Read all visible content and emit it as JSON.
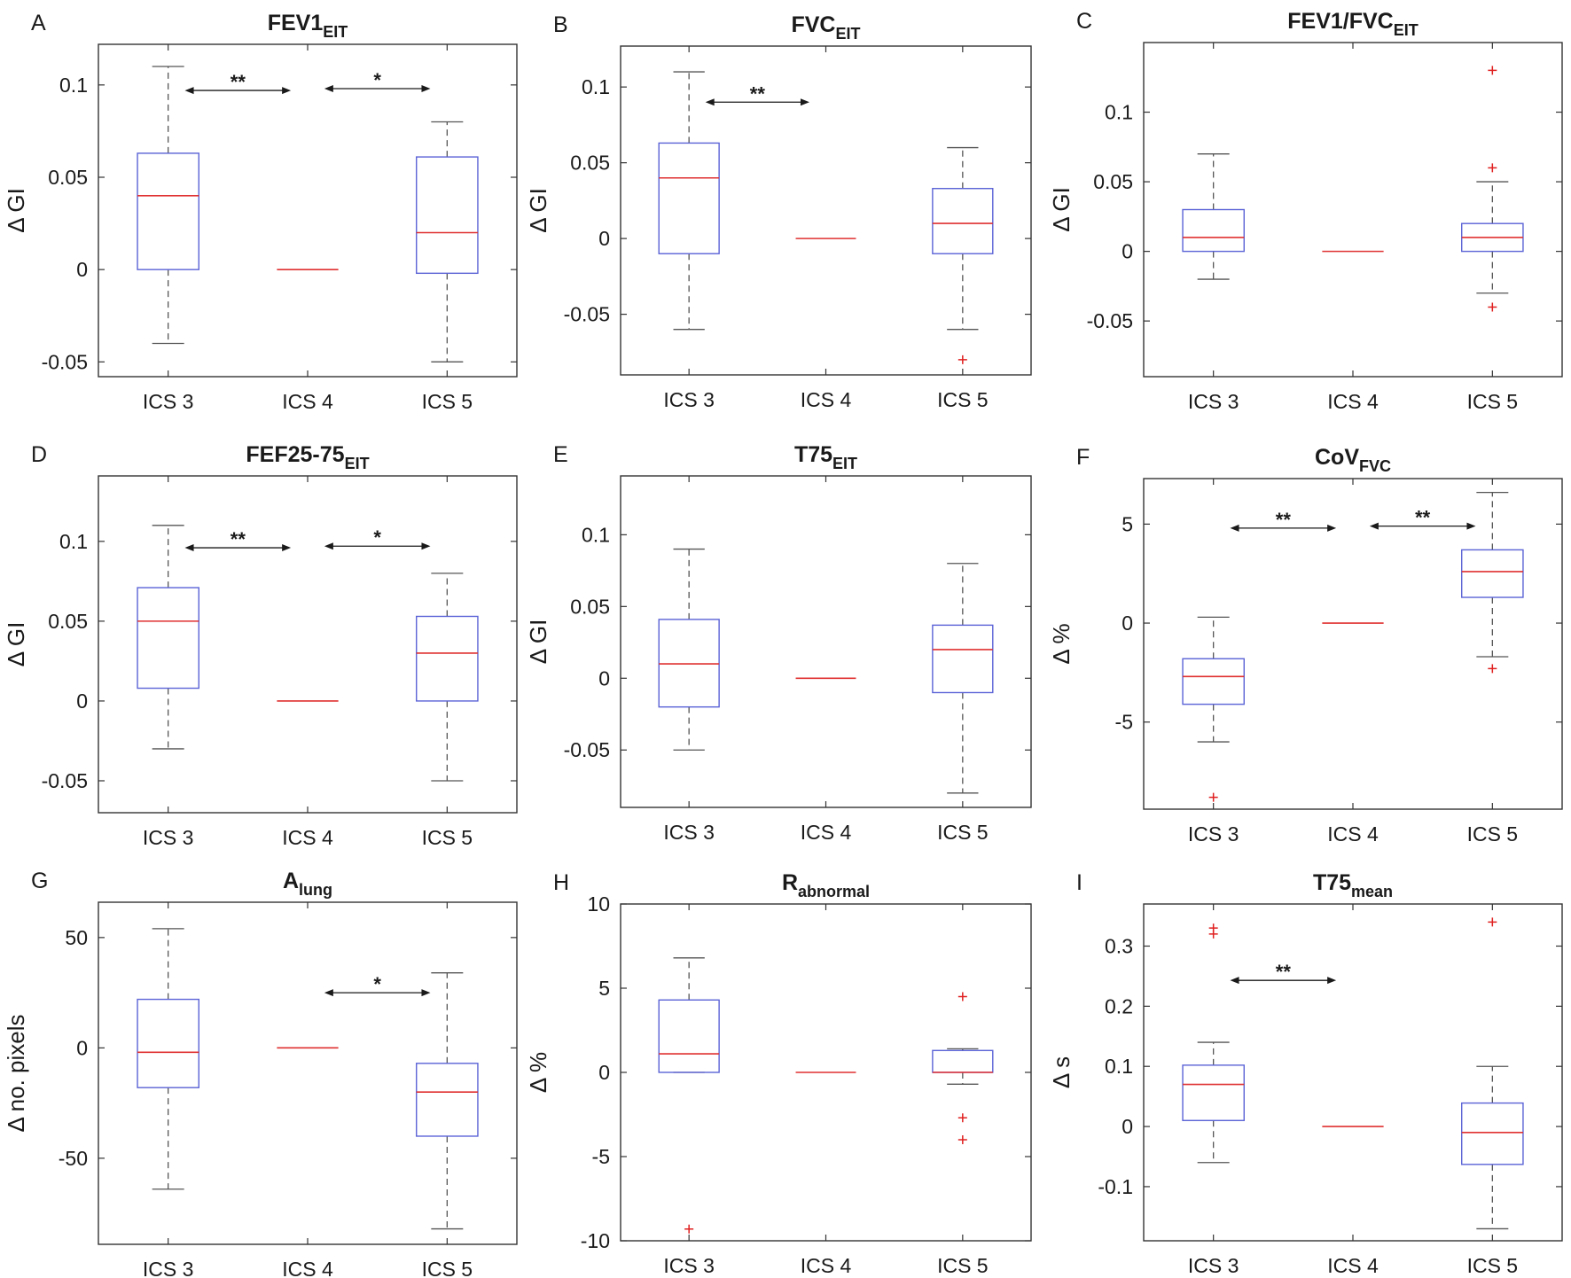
{
  "chart_data": [
    {
      "type": "box",
      "panel": "A",
      "title": "FEV1",
      "title_sub": "EIT",
      "ylabel": "Δ GI",
      "categories": [
        "ICS 3",
        "ICS 4",
        "ICS 5"
      ],
      "ylim": [
        -0.058,
        0.122
      ],
      "yticks": [
        -0.05,
        0,
        0.05,
        0.1
      ],
      "ytick_labels": [
        "-0.05",
        "0",
        "0.05",
        "0.1"
      ],
      "boxes": [
        {
          "whisker_low": -0.04,
          "q1": 0,
          "median": 0.04,
          "q3": 0.063,
          "whisker_high": 0.11,
          "outliers": []
        },
        {
          "whisker_low": 0,
          "q1": 0,
          "median": 0,
          "q3": 0,
          "whisker_high": 0,
          "outliers": []
        },
        {
          "whisker_low": -0.05,
          "q1": -0.002,
          "median": 0.02,
          "q3": 0.061,
          "whisker_high": 0.08,
          "outliers": []
        }
      ],
      "significance": [
        {
          "from": 0,
          "to": 1,
          "label": "**",
          "y": 0.097
        },
        {
          "from": 1,
          "to": 2,
          "label": "*",
          "y": 0.098
        }
      ]
    },
    {
      "type": "box",
      "panel": "B",
      "title": "FVC",
      "title_sub": "EIT",
      "ylabel": "Δ GI",
      "categories": [
        "ICS 3",
        "ICS 4",
        "ICS 5"
      ],
      "ylim": [
        -0.09,
        0.127
      ],
      "yticks": [
        -0.05,
        0,
        0.05,
        0.1
      ],
      "ytick_labels": [
        "-0.05",
        "0",
        "0.05",
        "0.1"
      ],
      "boxes": [
        {
          "whisker_low": -0.06,
          "q1": -0.01,
          "median": 0.04,
          "q3": 0.063,
          "whisker_high": 0.11,
          "outliers": []
        },
        {
          "whisker_low": 0,
          "q1": 0,
          "median": 0,
          "q3": 0,
          "whisker_high": 0,
          "outliers": []
        },
        {
          "whisker_low": -0.06,
          "q1": -0.01,
          "median": 0.01,
          "q3": 0.033,
          "whisker_high": 0.06,
          "outliers": [
            -0.08
          ]
        }
      ],
      "significance": [
        {
          "from": 0,
          "to": 1,
          "label": "**",
          "y": 0.09
        }
      ]
    },
    {
      "type": "box",
      "panel": "C",
      "title": "FEV1/FVC",
      "title_sub": "EIT",
      "ylabel": "Δ GI",
      "categories": [
        "ICS 3",
        "ICS 4",
        "ICS 5"
      ],
      "ylim": [
        -0.09,
        0.15
      ],
      "yticks": [
        -0.05,
        0,
        0.05,
        0.1
      ],
      "ytick_labels": [
        "-0.05",
        "0",
        "0.05",
        "0.1"
      ],
      "boxes": [
        {
          "whisker_low": -0.02,
          "q1": 0,
          "median": 0.01,
          "q3": 0.03,
          "whisker_high": 0.07,
          "outliers": []
        },
        {
          "whisker_low": 0,
          "q1": 0,
          "median": 0,
          "q3": 0,
          "whisker_high": 0,
          "outliers": []
        },
        {
          "whisker_low": -0.03,
          "q1": 0,
          "median": 0.01,
          "q3": 0.02,
          "whisker_high": 0.05,
          "outliers": [
            0.13,
            0.06,
            -0.04
          ]
        }
      ],
      "significance": []
    },
    {
      "type": "box",
      "panel": "D",
      "title": "FEF25-75",
      "title_sub": "EIT",
      "ylabel": "Δ GI",
      "categories": [
        "ICS 3",
        "ICS 4",
        "ICS 5"
      ],
      "ylim": [
        -0.07,
        0.141
      ],
      "yticks": [
        -0.05,
        0,
        0.05,
        0.1
      ],
      "ytick_labels": [
        "-0.05",
        "0",
        "0.05",
        "0.1"
      ],
      "boxes": [
        {
          "whisker_low": -0.03,
          "q1": 0.008,
          "median": 0.05,
          "q3": 0.071,
          "whisker_high": 0.11,
          "outliers": []
        },
        {
          "whisker_low": 0,
          "q1": 0,
          "median": 0,
          "q3": 0,
          "whisker_high": 0,
          "outliers": []
        },
        {
          "whisker_low": -0.05,
          "q1": 0,
          "median": 0.03,
          "q3": 0.053,
          "whisker_high": 0.08,
          "outliers": []
        }
      ],
      "significance": [
        {
          "from": 0,
          "to": 1,
          "label": "**",
          "y": 0.096
        },
        {
          "from": 1,
          "to": 2,
          "label": "*",
          "y": 0.097
        }
      ]
    },
    {
      "type": "box",
      "panel": "E",
      "title": "T75",
      "title_sub": "EIT",
      "ylabel": "Δ GI",
      "categories": [
        "ICS 3",
        "ICS 4",
        "ICS 5"
      ],
      "ylim": [
        -0.09,
        0.141
      ],
      "yticks": [
        -0.05,
        0,
        0.05,
        0.1
      ],
      "ytick_labels": [
        "-0.05",
        "0",
        "0.05",
        "0.1"
      ],
      "boxes": [
        {
          "whisker_low": -0.05,
          "q1": -0.02,
          "median": 0.01,
          "q3": 0.041,
          "whisker_high": 0.09,
          "outliers": []
        },
        {
          "whisker_low": 0,
          "q1": 0,
          "median": 0,
          "q3": 0,
          "whisker_high": 0,
          "outliers": []
        },
        {
          "whisker_low": -0.08,
          "q1": -0.01,
          "median": 0.02,
          "q3": 0.037,
          "whisker_high": 0.08,
          "outliers": []
        }
      ],
      "significance": []
    },
    {
      "type": "box",
      "panel": "F",
      "title": "CoV",
      "title_sub": "FVC",
      "ylabel": "Δ %",
      "categories": [
        "ICS 3",
        "ICS 4",
        "ICS 5"
      ],
      "ylim": [
        -9.4,
        7.3
      ],
      "yticks": [
        -5,
        0,
        5
      ],
      "ytick_labels": [
        "-5",
        "0",
        "5"
      ],
      "boxes": [
        {
          "whisker_low": -6,
          "q1": -4.1,
          "median": -2.7,
          "q3": -1.8,
          "whisker_high": 0.3,
          "outliers": [
            -8.8
          ]
        },
        {
          "whisker_low": 0,
          "q1": 0,
          "median": 0,
          "q3": 0,
          "whisker_high": 0,
          "outliers": []
        },
        {
          "whisker_low": -1.7,
          "q1": 1.3,
          "median": 2.6,
          "q3": 3.7,
          "whisker_high": 6.6,
          "outliers": [
            -2.3
          ]
        }
      ],
      "significance": [
        {
          "from": 0,
          "to": 1,
          "label": "**",
          "y": 4.8
        },
        {
          "from": 1,
          "to": 2,
          "label": "**",
          "y": 4.9
        }
      ]
    },
    {
      "type": "box",
      "panel": "G",
      "title": "A",
      "title_sub": "lung",
      "ylabel": "Δ no. pixels",
      "categories": [
        "ICS 3",
        "ICS 4",
        "ICS 5"
      ],
      "ylim": [
        -89,
        66
      ],
      "yticks": [
        -50,
        0,
        50
      ],
      "ytick_labels": [
        "-50",
        "0",
        "50"
      ],
      "boxes": [
        {
          "whisker_low": -64,
          "q1": -18,
          "median": -2,
          "q3": 22,
          "whisker_high": 54,
          "outliers": []
        },
        {
          "whisker_low": 0,
          "q1": 0,
          "median": 0,
          "q3": 0,
          "whisker_high": 0,
          "outliers": []
        },
        {
          "whisker_low": -82,
          "q1": -40,
          "median": -20,
          "q3": -7,
          "whisker_high": 34,
          "outliers": []
        }
      ],
      "significance": [
        {
          "from": 1,
          "to": 2,
          "label": "*",
          "y": 25
        }
      ]
    },
    {
      "type": "box",
      "panel": "H",
      "title": "R",
      "title_sub": "abnormal",
      "ylabel": "Δ %",
      "categories": [
        "ICS 3",
        "ICS 4",
        "ICS 5"
      ],
      "ylim": [
        -10,
        10
      ],
      "yticks": [
        -10,
        -5,
        0,
        5,
        10
      ],
      "ytick_labels": [
        "-10",
        "-5",
        "0",
        "5",
        "10"
      ],
      "boxes": [
        {
          "whisker_low": 0,
          "q1": 0,
          "median": 1.1,
          "q3": 4.3,
          "whisker_high": 6.8,
          "outliers": [
            -9.3
          ]
        },
        {
          "whisker_low": 0,
          "q1": 0,
          "median": 0,
          "q3": 0,
          "whisker_high": 0,
          "outliers": []
        },
        {
          "whisker_low": -0.7,
          "q1": 0,
          "median": 0,
          "q3": 1.3,
          "whisker_high": 1.4,
          "outliers": [
            4.5,
            -2.7,
            -4
          ]
        }
      ],
      "significance": []
    },
    {
      "type": "box",
      "panel": "I",
      "title": "T75",
      "title_sub": "mean",
      "ylabel": "Δ s",
      "categories": [
        "ICS 3",
        "ICS 4",
        "ICS 5"
      ],
      "ylim": [
        -0.19,
        0.37
      ],
      "yticks": [
        -0.1,
        0,
        0.1,
        0.2,
        0.3
      ],
      "ytick_labels": [
        "-0.1",
        "0",
        "0.1",
        "0.2",
        "0.3"
      ],
      "boxes": [
        {
          "whisker_low": -0.06,
          "q1": 0.01,
          "median": 0.07,
          "q3": 0.102,
          "whisker_high": 0.14,
          "outliers": [
            0.33,
            0.32
          ]
        },
        {
          "whisker_low": 0,
          "q1": 0,
          "median": 0,
          "q3": 0,
          "whisker_high": 0,
          "outliers": []
        },
        {
          "whisker_low": -0.17,
          "q1": -0.063,
          "median": -0.01,
          "q3": 0.039,
          "whisker_high": 0.1,
          "outliers": [
            0.34
          ]
        }
      ],
      "significance": [
        {
          "from": 0,
          "to": 1,
          "label": "**",
          "y": 0.243
        }
      ]
    }
  ],
  "colors": {
    "box": "#5b63d6",
    "median": "#e03030",
    "whisker": "#555555",
    "outlier": "#e02020",
    "axis": "#333333",
    "text": "#1a1a1a"
  }
}
